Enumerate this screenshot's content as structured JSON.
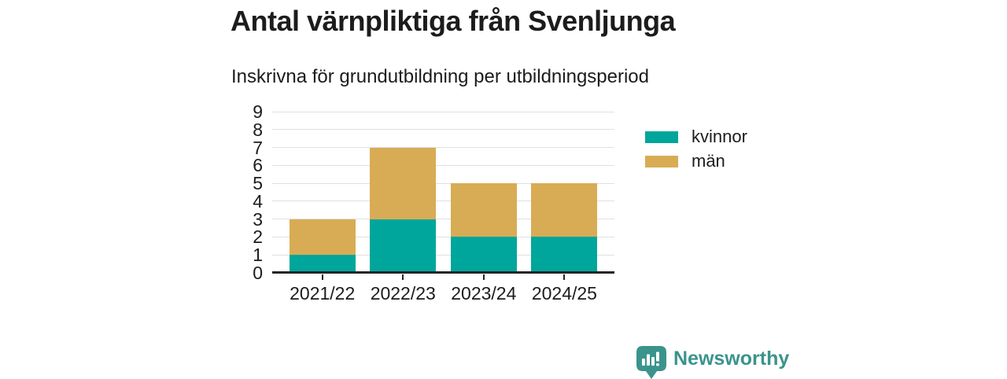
{
  "header": {
    "title": "Antal värnpliktiga från Svenljunga",
    "subtitle": "Inskrivna för grundutbildning per utbildningsperiod"
  },
  "chart_data": {
    "type": "bar",
    "stacked": true,
    "title": "Antal värnpliktiga från Svenljunga",
    "subtitle": "Inskrivna för grundutbildning per utbildningsperiod",
    "categories": [
      "2021/22",
      "2022/23",
      "2023/24",
      "2024/25"
    ],
    "series": [
      {
        "name": "kvinnor",
        "color": "#00a69b",
        "values": [
          1,
          3,
          2,
          2
        ]
      },
      {
        "name": "män",
        "color": "#d8ac55",
        "values": [
          2,
          4,
          3,
          3
        ]
      }
    ],
    "totals": [
      3,
      7,
      5,
      5
    ],
    "xlabel": "",
    "ylabel": "",
    "ylim": [
      0,
      9
    ],
    "yticks": [
      0,
      1,
      2,
      3,
      4,
      5,
      6,
      7,
      8,
      9
    ],
    "grid": "horizontal",
    "legend_position": "right"
  },
  "branding": {
    "logo_text": "Newsworthy",
    "logo_color": "#3a948c",
    "logo_icon": "speech-bubble-bar-chart-exclamation"
  },
  "colors": {
    "text": "#1c1c1c",
    "gridline": "#e0e0e0",
    "axis": "#252525",
    "background": "#ffffff"
  }
}
